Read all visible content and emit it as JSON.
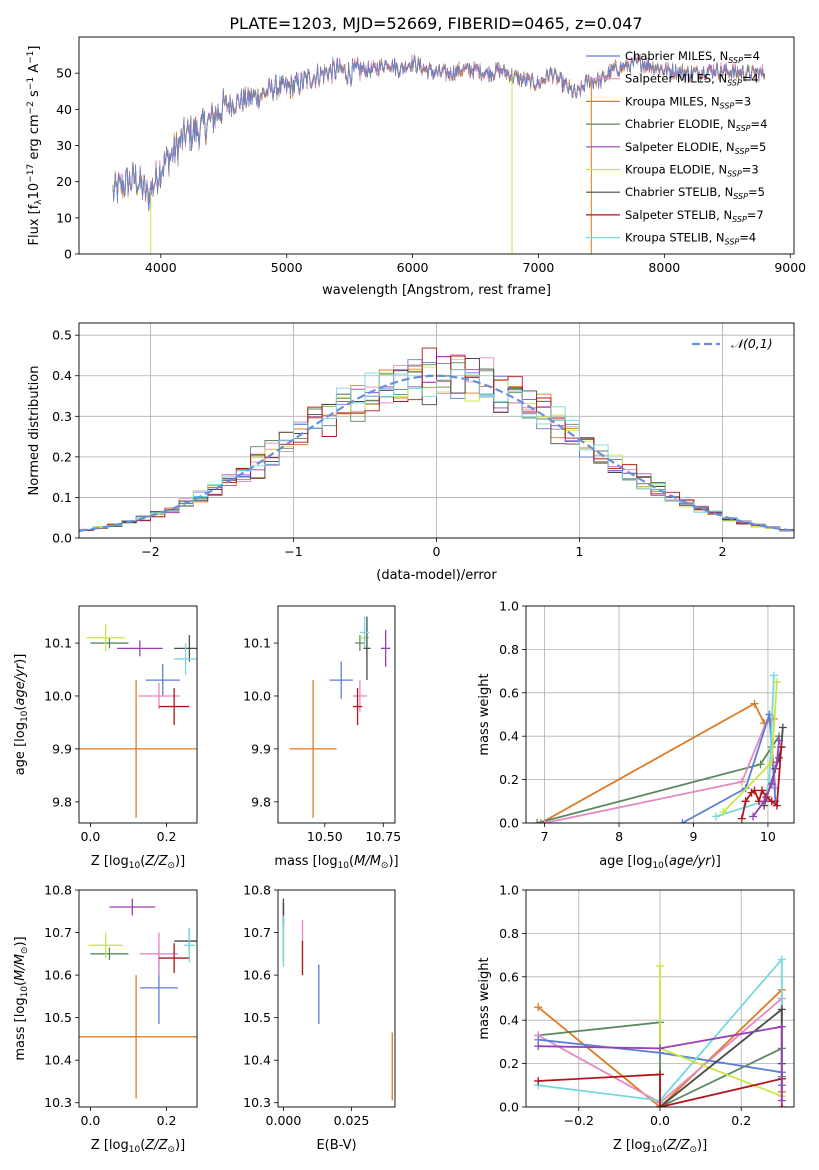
{
  "figure_title": "PLATE=1203, MJD=52669, FIBERID=0465, z=0.047",
  "colors": {
    "Chabrier MILES": "#5b7fd6",
    "Salpeter MILES": "#e58ac4",
    "Kroupa MILES": "#e07b25",
    "Chabrier ELODIE": "#5a8a5e",
    "Salpeter ELODIE": "#9a3fb5",
    "Kroupa ELODIE": "#c8e645",
    "Chabrier STELIB": "#4a4a4a",
    "Salpeter STELIB": "#b0161c",
    "Kroupa STELIB": "#77d8e0"
  },
  "chart_data": [
    {
      "id": "spectrum",
      "type": "line",
      "title": "PLATE=1203, MJD=52669, FIBERID=0465, z=0.047",
      "xlabel": "wavelength [Angstrom, rest frame]",
      "ylabel": "Flux [f_λ 10^-17 erg cm^-2 s^-1 A^-1]",
      "xlim": [
        3350,
        9030
      ],
      "ylim": [
        0,
        60
      ],
      "xticks": [
        4000,
        5000,
        6000,
        7000,
        8000,
        9000
      ],
      "yticks": [
        0,
        10,
        20,
        30,
        40,
        50
      ],
      "grid": false,
      "legend_position": "top-right",
      "legend": [
        {
          "name": "Chabrier MILES",
          "nssp": "4"
        },
        {
          "name": "Salpeter MILES",
          "nssp": "4"
        },
        {
          "name": "Kroupa MILES",
          "nssp": "3"
        },
        {
          "name": "Chabrier ELODIE",
          "nssp": "4"
        },
        {
          "name": "Salpeter ELODIE",
          "nssp": "5"
        },
        {
          "name": "Kroupa ELODIE",
          "nssp": "3"
        },
        {
          "name": "Chabrier STELIB",
          "nssp": "5"
        },
        {
          "name": "Salpeter STELIB",
          "nssp": "7"
        },
        {
          "name": "Kroupa STELIB",
          "nssp": "4"
        }
      ],
      "continuum": {
        "x": [
          3620,
          3700,
          3800,
          3900,
          4000,
          4100,
          4200,
          4300,
          4400,
          4500,
          4600,
          4700,
          4800,
          4900,
          5000,
          5100,
          5200,
          5300,
          5400,
          5500,
          5600,
          5700,
          5800,
          5900,
          6000,
          6100,
          6200,
          6300,
          6400,
          6500,
          6600,
          6700,
          6800,
          6900,
          7000,
          7100,
          7200,
          7300,
          7400,
          7500,
          7600,
          7700,
          7800,
          7900,
          8000,
          8200,
          8400,
          8600,
          8800
        ],
        "y": [
          17,
          19,
          21,
          16,
          24,
          28,
          33,
          34,
          37,
          41,
          42,
          43,
          44,
          46,
          46,
          47,
          49,
          50,
          51,
          50,
          51,
          51,
          53,
          51,
          53,
          51,
          50,
          50,
          51,
          51,
          50,
          51,
          49,
          48,
          47,
          50,
          47,
          44,
          48,
          48,
          51,
          52,
          53,
          52,
          51,
          50,
          51,
          50,
          50
        ]
      },
      "artifacts": [
        {
          "model": "Kroupa MILES",
          "x_start": 7420,
          "x_end": 7420,
          "y_low": 0
        },
        {
          "model": "Kroupa ELODIE",
          "x_start": 6790,
          "x_end": 6790,
          "y_low": 0
        },
        {
          "model": "Kroupa ELODIE",
          "x_start": 3920,
          "x_end": 3920,
          "y_low": 0
        }
      ]
    },
    {
      "id": "residuals",
      "type": "histogram",
      "xlabel": "(data-model)/error",
      "ylabel": "Normed distribution",
      "xlim": [
        -2.5,
        2.5
      ],
      "ylim": [
        0,
        0.53
      ],
      "xticks": [
        -2,
        -1,
        0,
        1,
        2
      ],
      "yticks": [
        0.0,
        0.1,
        0.2,
        0.3,
        0.4,
        0.5
      ],
      "grid": true,
      "bin_width": 0.1,
      "reference_curve": {
        "name": "𝒩(0,1)",
        "mean": 0,
        "sigma": 1,
        "peak": 0.4
      },
      "legend_position": "top-right"
    },
    {
      "id": "age_vs_Z",
      "type": "errorbar",
      "xlabel": "Z [log10(Z/Z⊙)]",
      "ylabel": "age [log10(age/yr)]",
      "xlim": [
        -0.03,
        0.28
      ],
      "ylim": [
        9.76,
        10.17
      ],
      "xticks": [
        0.0,
        0.2
      ],
      "xtick_labels": [
        "0.0",
        "0.2"
      ],
      "yticks": [
        9.8,
        9.9,
        10.0,
        10.1
      ],
      "points": [
        {
          "model": "Chabrier MILES",
          "x": 0.19,
          "y": 10.03,
          "xerr": 0.045,
          "yerr": 0.03
        },
        {
          "model": "Salpeter MILES",
          "x": 0.18,
          "y": 10.0,
          "xerr": 0.055,
          "yerr": 0.025
        },
        {
          "model": "Kroupa MILES",
          "x": 0.12,
          "y": 9.9,
          "xerr": 0.22,
          "yerr": 0.13
        },
        {
          "model": "Chabrier ELODIE",
          "x": 0.05,
          "y": 10.1,
          "xerr": 0.05,
          "yerr": 0.01
        },
        {
          "model": "Salpeter ELODIE",
          "x": 0.13,
          "y": 10.09,
          "xerr": 0.06,
          "yerr": 0.015
        },
        {
          "model": "Kroupa ELODIE",
          "x": 0.04,
          "y": 10.11,
          "xerr": 0.05,
          "yerr": 0.025
        },
        {
          "model": "Chabrier STELIB",
          "x": 0.26,
          "y": 10.09,
          "xerr": 0.04,
          "yerr": 0.025
        },
        {
          "model": "Salpeter STELIB",
          "x": 0.22,
          "y": 9.98,
          "xerr": 0.04,
          "yerr": 0.035
        },
        {
          "model": "Kroupa STELIB",
          "x": 0.25,
          "y": 10.07,
          "xerr": 0.03,
          "yerr": 0.03
        }
      ]
    },
    {
      "id": "age_vs_mass",
      "type": "errorbar",
      "xlabel": "mass [log10(M/M⊙)]",
      "ylabel": "",
      "xlim": [
        10.3,
        10.8
      ],
      "ylim": [
        9.76,
        10.17
      ],
      "xticks": [
        10.5,
        10.75
      ],
      "xtick_labels": [
        "10.50",
        "10.75"
      ],
      "yticks": [
        9.8,
        9.9,
        10.0,
        10.1
      ],
      "points": [
        {
          "model": "Chabrier MILES",
          "x": 10.57,
          "y": 10.03,
          "xerr": 0.05,
          "yerr": 0.035
        },
        {
          "model": "Salpeter MILES",
          "x": 10.65,
          "y": 10.0,
          "xerr": 0.03,
          "yerr": 0.03
        },
        {
          "model": "Kroupa MILES",
          "x": 10.45,
          "y": 9.9,
          "xerr": 0.1,
          "yerr": 0.13
        },
        {
          "model": "Chabrier ELODIE",
          "x": 10.65,
          "y": 10.1,
          "xerr": 0.02,
          "yerr": 0.015
        },
        {
          "model": "Salpeter ELODIE",
          "x": 10.76,
          "y": 10.09,
          "xerr": 0.02,
          "yerr": 0.035
        },
        {
          "model": "Kroupa ELODIE",
          "x": 10.67,
          "y": 10.11,
          "xerr": 0.02,
          "yerr": 0.02
        },
        {
          "model": "Chabrier STELIB",
          "x": 10.68,
          "y": 10.09,
          "xerr": 0.015,
          "yerr": 0.06
        },
        {
          "model": "Salpeter STELIB",
          "x": 10.64,
          "y": 9.98,
          "xerr": 0.02,
          "yerr": 0.035
        },
        {
          "model": "Kroupa STELIB",
          "x": 10.67,
          "y": 10.12,
          "xerr": 0.02,
          "yerr": 0.03
        }
      ]
    },
    {
      "id": "weight_vs_age",
      "type": "line",
      "xlabel": "age [log10(age/yr)]",
      "ylabel": "mass weight",
      "xlim": [
        6.75,
        10.35
      ],
      "ylim": [
        0,
        1.0
      ],
      "xticks": [
        7,
        8,
        9,
        10
      ],
      "yticks": [
        0.0,
        0.2,
        0.4,
        0.6,
        0.8,
        1.0
      ],
      "grid": true,
      "series": [
        {
          "model": "Kroupa MILES",
          "x": [
            6.95,
            9.82,
            9.95,
            10.08
          ],
          "y": [
            0.0,
            0.55,
            0.46,
            0.48
          ]
        },
        {
          "model": "Chabrier ELODIE",
          "x": [
            6.9,
            9.9,
            10.05,
            10.15
          ],
          "y": [
            0.0,
            0.27,
            0.35,
            0.4
          ]
        },
        {
          "model": "Salpeter MILES",
          "x": [
            7.0,
            9.65,
            10.02,
            10.1
          ],
          "y": [
            0.0,
            0.19,
            0.5,
            0.16
          ]
        },
        {
          "model": "Chabrier MILES",
          "x": [
            8.85,
            9.7,
            10.02,
            10.1
          ],
          "y": [
            0.0,
            0.16,
            0.5,
            0.1
          ]
        },
        {
          "model": "Kroupa STELIB",
          "x": [
            9.3,
            9.95,
            10.02,
            10.08
          ],
          "y": [
            0.03,
            0.1,
            0.2,
            0.68
          ]
        },
        {
          "model": "Kroupa ELODIE",
          "x": [
            9.4,
            10.05,
            10.12
          ],
          "y": [
            0.05,
            0.28,
            0.65
          ]
        },
        {
          "model": "Chabrier STELIB",
          "x": [
            9.95,
            10.1,
            10.15,
            10.18,
            10.2
          ],
          "y": [
            0.08,
            0.25,
            0.3,
            0.35,
            0.44
          ]
        },
        {
          "model": "Salpeter STELIB",
          "x": [
            9.65,
            9.7,
            9.78,
            9.82,
            9.88,
            9.92,
            9.98,
            10.05,
            10.12,
            10.18
          ],
          "y": [
            0.02,
            0.1,
            0.14,
            0.15,
            0.1,
            0.15,
            0.12,
            0.1,
            0.08,
            0.35
          ]
        },
        {
          "model": "Salpeter ELODIE",
          "x": [
            9.8,
            9.95,
            10.05,
            10.12,
            10.15
          ],
          "y": [
            0.03,
            0.1,
            0.18,
            0.28,
            0.38
          ]
        }
      ]
    },
    {
      "id": "mass_vs_Z",
      "type": "errorbar",
      "xlabel": "Z [log10(Z/Z⊙)]",
      "ylabel": "mass [log10(M/M⊙)]",
      "xlim": [
        -0.03,
        0.28
      ],
      "ylim": [
        10.29,
        10.8
      ],
      "xticks": [
        0.0,
        0.2
      ],
      "xtick_labels": [
        "0.0",
        "0.2"
      ],
      "yticks": [
        10.3,
        10.4,
        10.5,
        10.6,
        10.7,
        10.8
      ],
      "points": [
        {
          "model": "Chabrier MILES",
          "x": 0.18,
          "y": 10.57,
          "xerr": 0.05,
          "yerr": 0.085
        },
        {
          "model": "Salpeter MILES",
          "x": 0.18,
          "y": 10.65,
          "xerr": 0.05,
          "yerr": 0.05
        },
        {
          "model": "Kroupa MILES",
          "x": 0.12,
          "y": 10.455,
          "xerr": 0.22,
          "yerr": 0.145
        },
        {
          "model": "Chabrier ELODIE",
          "x": 0.05,
          "y": 10.65,
          "xerr": 0.05,
          "yerr": 0.015
        },
        {
          "model": "Salpeter ELODIE",
          "x": 0.11,
          "y": 10.76,
          "xerr": 0.06,
          "yerr": 0.02
        },
        {
          "model": "Kroupa ELODIE",
          "x": 0.04,
          "y": 10.67,
          "xerr": 0.045,
          "yerr": 0.03
        },
        {
          "model": "Chabrier STELIB",
          "x": 0.26,
          "y": 10.68,
          "xerr": 0.04,
          "yerr": 0.03
        },
        {
          "model": "Salpeter STELIB",
          "x": 0.22,
          "y": 10.64,
          "xerr": 0.04,
          "yerr": 0.035
        },
        {
          "model": "Kroupa STELIB",
          "x": 0.26,
          "y": 10.67,
          "xerr": 0.015,
          "yerr": 0.04
        }
      ]
    },
    {
      "id": "mass_vs_ebv",
      "type": "errorbar",
      "xlabel": "E(B-V)",
      "ylabel": "",
      "xlim": [
        -0.002,
        0.041
      ],
      "ylim": [
        10.29,
        10.8
      ],
      "xticks": [
        0.0,
        0.025
      ],
      "xtick_labels": [
        "0.000",
        "0.025"
      ],
      "yticks": [
        10.3,
        10.4,
        10.5,
        10.6,
        10.7,
        10.8
      ],
      "points": [
        {
          "model": "Chabrier MILES",
          "x": 0.013,
          "y": 10.555,
          "xerr": 0,
          "yerr": 0.07
        },
        {
          "model": "Salpeter MILES",
          "x": 0.007,
          "y": 10.665,
          "xerr": 0,
          "yerr": 0.065
        },
        {
          "model": "Kroupa MILES",
          "x": 0.04,
          "y": 10.385,
          "xerr": 0,
          "yerr": 0.08
        },
        {
          "model": "Chabrier ELODIE",
          "x": 0.0,
          "y": 10.7,
          "xerr": 0,
          "yerr": 0.07
        },
        {
          "model": "Salpeter ELODIE",
          "x": 0.0,
          "y": 10.74,
          "xerr": 0,
          "yerr": 0.03
        },
        {
          "model": "Kroupa ELODIE",
          "x": 0.0,
          "y": 10.66,
          "xerr": 0,
          "yerr": 0.04
        },
        {
          "model": "Chabrier STELIB",
          "x": 0.0,
          "y": 10.75,
          "xerr": 0,
          "yerr": 0.03
        },
        {
          "model": "Salpeter STELIB",
          "x": 0.007,
          "y": 10.64,
          "xerr": 0,
          "yerr": 0.04
        },
        {
          "model": "Kroupa STELIB",
          "x": 0.0,
          "y": 10.68,
          "xerr": 0,
          "yerr": 0.06
        }
      ]
    },
    {
      "id": "weight_vs_Z",
      "type": "line",
      "xlabel": "Z [log10(Z/Z⊙)]",
      "ylabel": "mass weight",
      "xlim": [
        -0.33,
        0.33
      ],
      "ylim": [
        0,
        1.0
      ],
      "xticks": [
        -0.2,
        0.0,
        0.2
      ],
      "xtick_labels": [
        "−0.2",
        "0.0",
        "0.2"
      ],
      "yticks": [
        0.0,
        0.2,
        0.4,
        0.6,
        0.8,
        1.0
      ],
      "grid": true,
      "series": [
        {
          "model": "Kroupa MILES",
          "x": [
            -0.3,
            0.0,
            0.3,
            0.3
          ],
          "y": [
            0.46,
            0.0,
            0.54,
            0.07
          ]
        },
        {
          "model": "Chabrier ELODIE",
          "x": [
            -0.3,
            0.0,
            0.0,
            0.3,
            0.3
          ],
          "y": [
            0.33,
            0.39,
            0.0,
            0.27,
            0.14
          ]
        },
        {
          "model": "Salpeter MILES",
          "x": [
            -0.3,
            0.0,
            0.3,
            0.3
          ],
          "y": [
            0.33,
            0.02,
            0.5,
            0.16
          ]
        },
        {
          "model": "Chabrier MILES",
          "x": [
            -0.3,
            0.0,
            0.3,
            0.3
          ],
          "y": [
            0.31,
            0.25,
            0.16,
            0.1
          ]
        },
        {
          "model": "Kroupa STELIB",
          "x": [
            -0.3,
            0.0,
            0.3,
            0.3
          ],
          "y": [
            0.1,
            0.03,
            0.68,
            0.2
          ]
        },
        {
          "model": "Kroupa ELODIE",
          "x": [
            0.0,
            0.0,
            0.3
          ],
          "y": [
            0.65,
            0.27,
            0.05
          ]
        },
        {
          "model": "Chabrier STELIB",
          "x": [
            0.0,
            0.3,
            0.3
          ],
          "y": [
            0.0,
            0.45,
            0.2
          ]
        },
        {
          "model": "Salpeter STELIB",
          "x": [
            -0.3,
            0.0,
            0.0,
            0.3,
            0.3
          ],
          "y": [
            0.12,
            0.15,
            0.0,
            0.13,
            0.0
          ]
        },
        {
          "model": "Salpeter ELODIE",
          "x": [
            -0.3,
            0.0,
            0.3,
            0.3
          ],
          "y": [
            0.28,
            0.27,
            0.37,
            0.03
          ]
        }
      ]
    }
  ]
}
